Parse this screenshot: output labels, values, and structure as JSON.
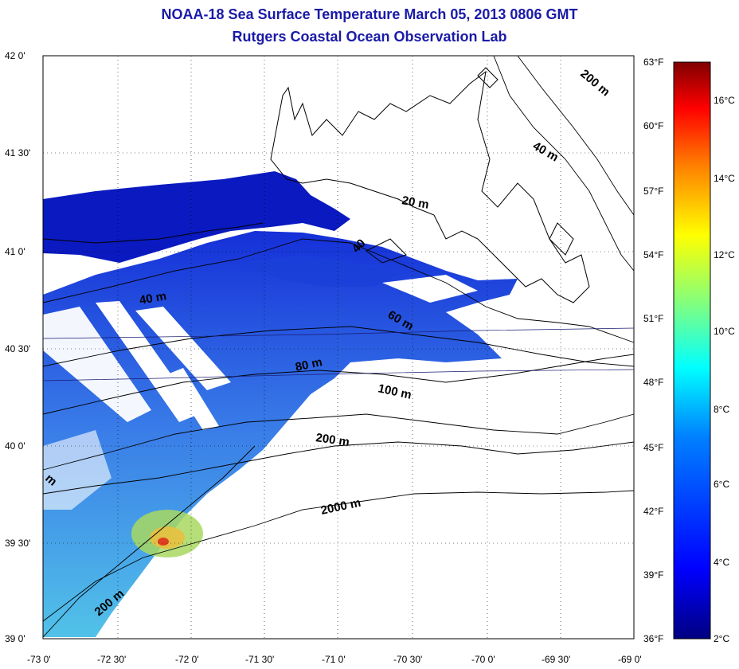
{
  "map": {
    "title": "NOAA-18 Sea Surface Temperature March 05, 2013 0806 GMT",
    "subtitle": "Rutgers Coastal Ocean Observation Lab",
    "lat_labels": [
      "42 0'",
      "41 30'",
      "41 0'",
      "40 30'",
      "40 0'",
      "39 30'",
      "39 0'"
    ],
    "lon_labels": [
      "-73 0'",
      "-72 30'",
      "-72 0'",
      "-71 30'",
      "-71 0'",
      "-70 30'",
      "-70 0'",
      "-69 30'",
      "-69 0'"
    ],
    "fahrenheit_labels": [
      "63°F",
      "60°F",
      "57°F",
      "54°F",
      "51°F",
      "48°F",
      "45°F",
      "42°F",
      "39°F",
      "36°F"
    ],
    "celsius_labels": [
      "16°C",
      "14°C",
      "12°C",
      "10°C",
      "8°C",
      "6°C",
      "4°C",
      "2°C"
    ],
    "contour_labels": [
      "200 m",
      "40 m",
      "20 m",
      "40",
      "40 m",
      "60 m",
      "80 m",
      "100 m",
      "200 m",
      "2000 m",
      "200 m",
      "m"
    ],
    "colors": {
      "title": "#1a1aa8",
      "land_line": "#000000",
      "scale": [
        "#000080",
        "#0000ff",
        "#0080ff",
        "#00ffff",
        "#80ff80",
        "#ffff00",
        "#ff8000",
        "#ff0000",
        "#800000"
      ]
    }
  }
}
